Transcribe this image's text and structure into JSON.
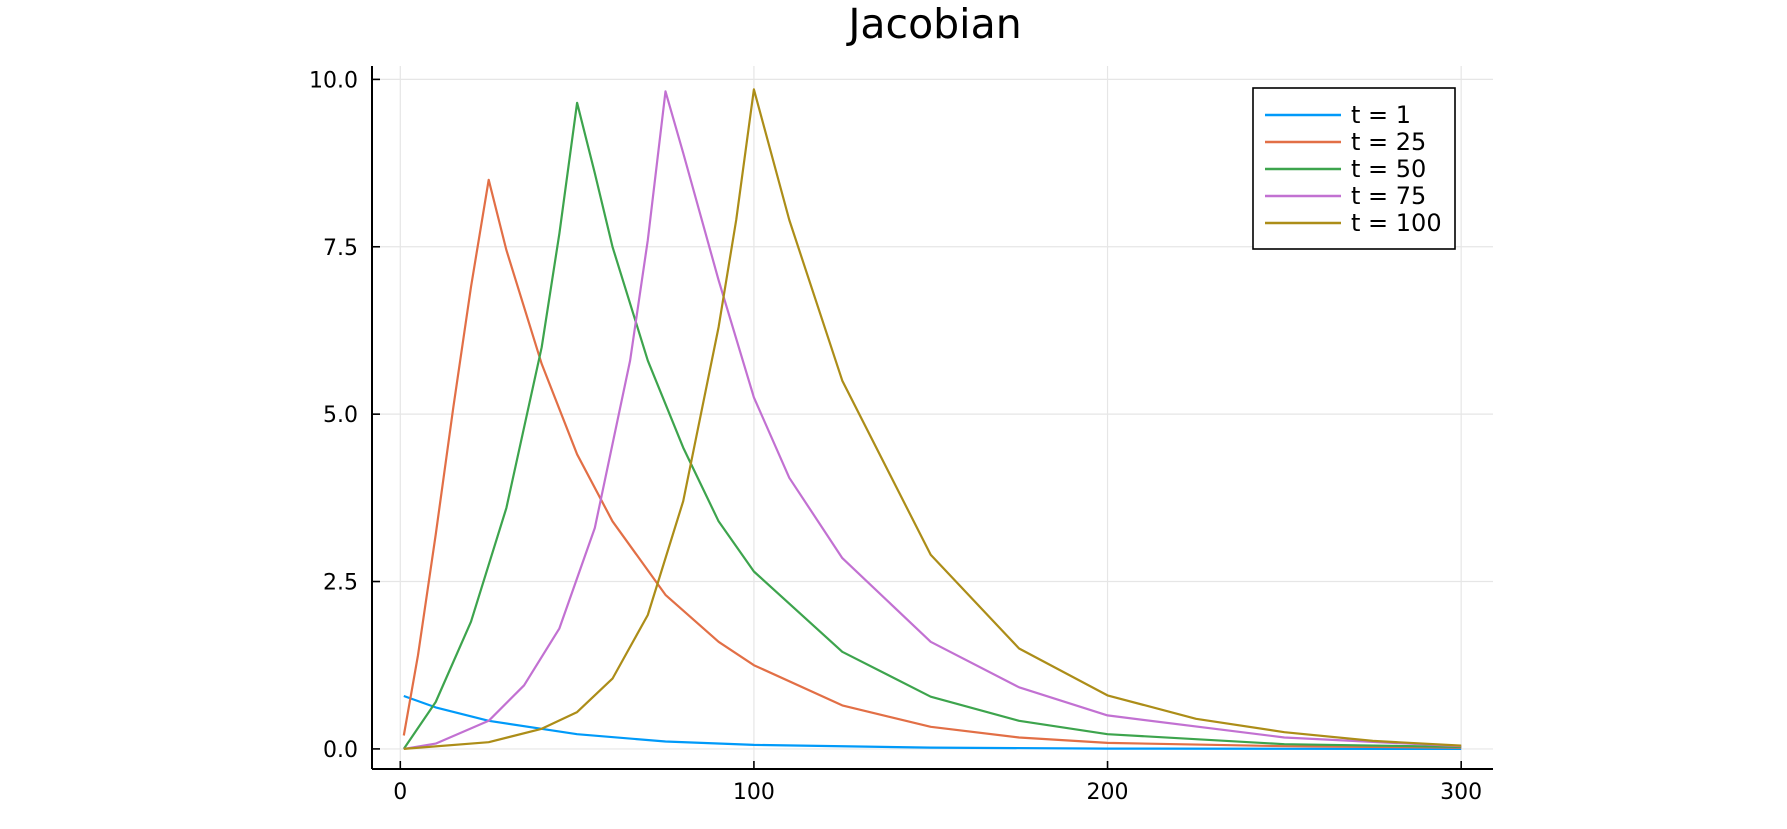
{
  "chart_data": {
    "type": "line",
    "title": "Jacobian",
    "xlabel": "",
    "ylabel": "",
    "xlim": [
      -8,
      309
    ],
    "ylim": [
      -0.3,
      10.2
    ],
    "x_ticks": [
      0,
      100,
      200,
      300
    ],
    "x_tick_labels": [
      "0",
      "100",
      "200",
      "300"
    ],
    "y_ticks": [
      0,
      2.5,
      5,
      7.5,
      10
    ],
    "y_tick_labels": [
      "0.0",
      "2.5",
      "5.0",
      "7.5",
      "10.0"
    ],
    "grid": true,
    "legend_position": "top-right",
    "series": [
      {
        "name": "t = 1",
        "color": "#009af9",
        "x": [
          1,
          10,
          25,
          50,
          75,
          100,
          150,
          200,
          250,
          300
        ],
        "y": [
          0.79,
          0.62,
          0.42,
          0.22,
          0.11,
          0.06,
          0.02,
          0.005,
          0.001,
          0.0
        ]
      },
      {
        "name": "t = 25",
        "color": "#e26f46",
        "x": [
          1,
          5,
          10,
          15,
          20,
          25,
          30,
          40,
          50,
          60,
          75,
          90,
          100,
          125,
          150,
          175,
          200,
          250,
          300
        ],
        "y": [
          0.2,
          1.4,
          3.2,
          5.1,
          6.9,
          8.5,
          7.45,
          5.75,
          4.4,
          3.4,
          2.3,
          1.6,
          1.25,
          0.65,
          0.33,
          0.17,
          0.09,
          0.04,
          0.02
        ]
      },
      {
        "name": "t = 50",
        "color": "#3da44d",
        "x": [
          1,
          10,
          20,
          30,
          40,
          45,
          50,
          55,
          60,
          70,
          80,
          90,
          100,
          125,
          150,
          175,
          200,
          250,
          300
        ],
        "y": [
          0.0,
          0.7,
          1.9,
          3.6,
          6.0,
          7.7,
          9.65,
          8.6,
          7.5,
          5.8,
          4.5,
          3.4,
          2.65,
          1.45,
          0.78,
          0.42,
          0.22,
          0.07,
          0.03
        ]
      },
      {
        "name": "t = 75",
        "color": "#c271d2",
        "x": [
          1,
          10,
          25,
          35,
          45,
          55,
          65,
          70,
          75,
          80,
          90,
          100,
          110,
          125,
          150,
          175,
          200,
          250,
          300
        ],
        "y": [
          0.0,
          0.08,
          0.42,
          0.95,
          1.8,
          3.3,
          5.8,
          7.6,
          9.82,
          8.9,
          7.0,
          5.25,
          4.05,
          2.85,
          1.6,
          0.92,
          0.5,
          0.17,
          0.04
        ]
      },
      {
        "name": "t = 100",
        "color": "#ac8d18",
        "x": [
          1,
          25,
          40,
          50,
          60,
          70,
          80,
          90,
          95,
          100,
          110,
          125,
          150,
          175,
          200,
          225,
          250,
          275,
          300
        ],
        "y": [
          0.0,
          0.1,
          0.3,
          0.55,
          1.05,
          2.0,
          3.7,
          6.3,
          7.9,
          9.85,
          7.9,
          5.5,
          2.9,
          1.5,
          0.8,
          0.45,
          0.25,
          0.12,
          0.05
        ]
      }
    ]
  }
}
